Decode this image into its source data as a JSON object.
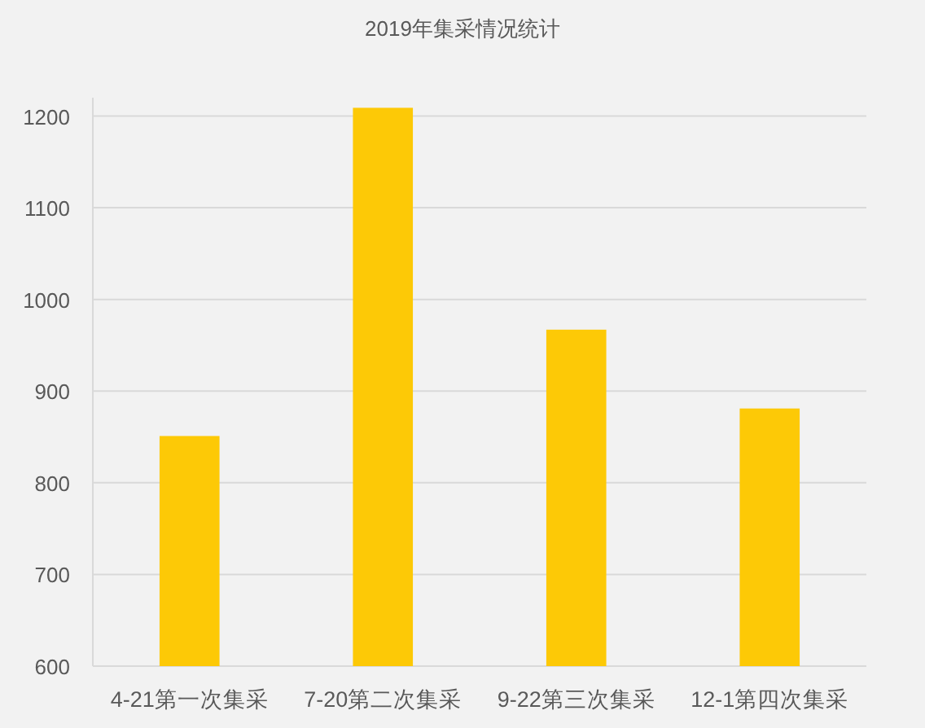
{
  "chart_data": {
    "type": "bar",
    "title": "2019年集采情况统计",
    "categories": [
      "4-21第一次集采",
      "7-20第二次集采",
      "9-22第三次集采",
      "12-1第四次集采"
    ],
    "values": [
      851,
      1209,
      967,
      881
    ],
    "color": "#fdc906",
    "ylim": [
      600,
      1220
    ],
    "yticks": [
      600,
      700,
      800,
      900,
      1000,
      1100,
      1200
    ],
    "grid": "y"
  }
}
